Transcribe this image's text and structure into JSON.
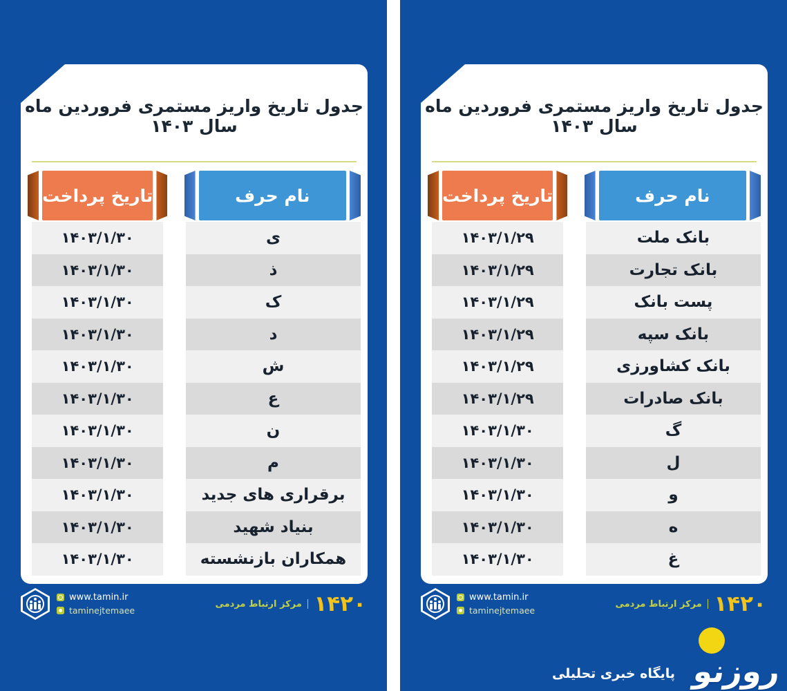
{
  "title": "جدول تاریخ واریز مستمری فروردین ماه سال ۱۴۰۳",
  "columns": {
    "date": "تاریخ پرداخت",
    "name": "نام حرف"
  },
  "right_table": {
    "rows": [
      {
        "name": "بانک ملت",
        "date": "۱۴۰۳/۱/۲۹"
      },
      {
        "name": "بانک تجارت",
        "date": "۱۴۰۳/۱/۲۹"
      },
      {
        "name": "پست بانک",
        "date": "۱۴۰۳/۱/۲۹"
      },
      {
        "name": "بانک سپه",
        "date": "۱۴۰۳/۱/۲۹"
      },
      {
        "name": "بانک کشاورزی",
        "date": "۱۴۰۳/۱/۲۹"
      },
      {
        "name": "بانک صادرات",
        "date": "۱۴۰۳/۱/۲۹"
      },
      {
        "name": "گ",
        "date": "۱۴۰۳/۱/۳۰"
      },
      {
        "name": "ل",
        "date": "۱۴۰۳/۱/۳۰"
      },
      {
        "name": "و",
        "date": "۱۴۰۳/۱/۳۰"
      },
      {
        "name": "ه",
        "date": "۱۴۰۳/۱/۳۰"
      },
      {
        "name": "غ",
        "date": "۱۴۰۳/۱/۳۰"
      }
    ]
  },
  "left_table": {
    "rows": [
      {
        "name": "ی",
        "date": "۱۴۰۳/۱/۳۰"
      },
      {
        "name": "ذ",
        "date": "۱۴۰۳/۱/۳۰"
      },
      {
        "name": "ک",
        "date": "۱۴۰۳/۱/۳۰"
      },
      {
        "name": "د",
        "date": "۱۴۰۳/۱/۳۰"
      },
      {
        "name": "ش",
        "date": "۱۴۰۳/۱/۳۰"
      },
      {
        "name": "ع",
        "date": "۱۴۰۳/۱/۳۰"
      },
      {
        "name": "ن",
        "date": "۱۴۰۳/۱/۳۰"
      },
      {
        "name": "م",
        "date": "۱۴۰۳/۱/۳۰"
      },
      {
        "name": "برقراری های جدید",
        "date": "۱۴۰۳/۱/۳۰"
      },
      {
        "name": "بنیاد شهید",
        "date": "۱۴۰۳/۱/۳۰"
      },
      {
        "name": "همکاران بازنشسته",
        "date": "۱۴۰۳/۱/۳۰"
      }
    ]
  },
  "footer": {
    "website": "www.tamin.ir",
    "social": "taminejtemaee",
    "hotline": "۱۴۲۰",
    "hotline_label": "مرکز ارتباط مردمی"
  },
  "watermark": {
    "logo": "روزنو",
    "tagline": "پایگاه خبری تحلیلی"
  },
  "colors": {
    "panel_blue": "#0e4fa1",
    "header_orange": "#ed7b4e",
    "header_orange_dark": "#8a4314",
    "header_blue": "#3e96d6",
    "header_blue_dark": "#2d5fa5",
    "row_light": "#f0f0f0",
    "row_dark": "#dadada",
    "divider_yellow": "#d8db84",
    "hotline_yellow": "#f2c31d",
    "accent_green": "#b9cd36"
  }
}
